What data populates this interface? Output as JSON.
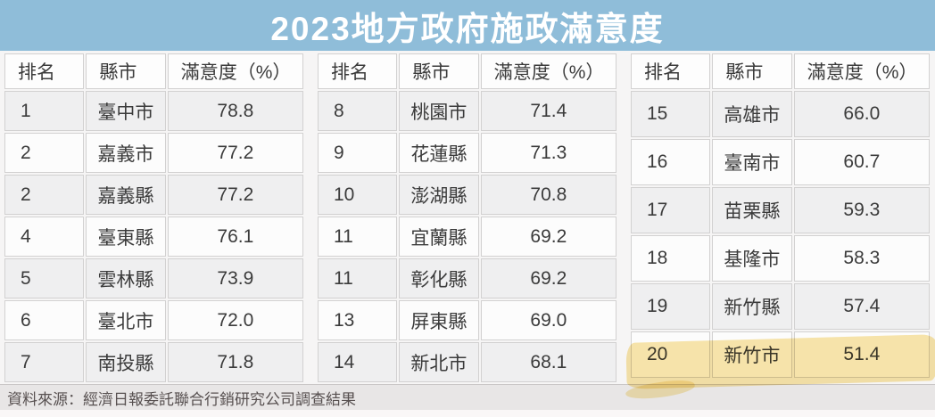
{
  "title": "2023地方政府施政滿意度",
  "source_note": "資料來源：經濟日報委託聯合行銷研究公司調查結果",
  "columns": {
    "rank": "排名",
    "city": "縣市",
    "satisfaction": "滿意度（%）"
  },
  "tables": [
    {
      "rows": [
        {
          "rank": "1",
          "city": "臺中市",
          "score": "78.8"
        },
        {
          "rank": "2",
          "city": "嘉義市",
          "score": "77.2"
        },
        {
          "rank": "2",
          "city": "嘉義縣",
          "score": "77.2"
        },
        {
          "rank": "4",
          "city": "臺東縣",
          "score": "76.1"
        },
        {
          "rank": "5",
          "city": "雲林縣",
          "score": "73.9"
        },
        {
          "rank": "6",
          "city": "臺北市",
          "score": "72.0"
        },
        {
          "rank": "7",
          "city": "南投縣",
          "score": "71.8"
        }
      ]
    },
    {
      "rows": [
        {
          "rank": "8",
          "city": "桃園市",
          "score": "71.4"
        },
        {
          "rank": "9",
          "city": "花蓮縣",
          "score": "71.3"
        },
        {
          "rank": "10",
          "city": "澎湖縣",
          "score": "70.8"
        },
        {
          "rank": "11",
          "city": "宜蘭縣",
          "score": "69.2"
        },
        {
          "rank": "11",
          "city": "彰化縣",
          "score": "69.2"
        },
        {
          "rank": "13",
          "city": "屏東縣",
          "score": "69.0"
        },
        {
          "rank": "14",
          "city": "新北市",
          "score": "68.1"
        }
      ]
    },
    {
      "rows": [
        {
          "rank": "15",
          "city": "高雄市",
          "score": "66.0"
        },
        {
          "rank": "16",
          "city": "臺南市",
          "score": "60.7"
        },
        {
          "rank": "17",
          "city": "苗栗縣",
          "score": "59.3"
        },
        {
          "rank": "18",
          "city": "基隆市",
          "score": "58.3"
        },
        {
          "rank": "19",
          "city": "新竹縣",
          "score": "57.4"
        },
        {
          "rank": "20",
          "city": "新竹市",
          "score": "51.4"
        }
      ]
    }
  ],
  "highlight": {
    "rank": "20",
    "city": "新竹市",
    "score": "51.4",
    "color": "#f3cf5f"
  },
  "colors": {
    "banner_blue": "#8fbdd9",
    "highlight_yellow": "#f3cf5f",
    "row_stripe": "#efeff0"
  },
  "chart_data": {
    "type": "table",
    "title": "2023地方政府施政滿意度",
    "columns": [
      "排名",
      "縣市",
      "滿意度（%）"
    ],
    "rows": [
      [
        1,
        "臺中市",
        78.8
      ],
      [
        2,
        "嘉義市",
        77.2
      ],
      [
        2,
        "嘉義縣",
        77.2
      ],
      [
        4,
        "臺東縣",
        76.1
      ],
      [
        5,
        "雲林縣",
        73.9
      ],
      [
        6,
        "臺北市",
        72.0
      ],
      [
        7,
        "南投縣",
        71.8
      ],
      [
        8,
        "桃園市",
        71.4
      ],
      [
        9,
        "花蓮縣",
        71.3
      ],
      [
        10,
        "澎湖縣",
        70.8
      ],
      [
        11,
        "宜蘭縣",
        69.2
      ],
      [
        11,
        "彰化縣",
        69.2
      ],
      [
        13,
        "屏東縣",
        69.0
      ],
      [
        14,
        "新北市",
        68.1
      ],
      [
        15,
        "高雄市",
        66.0
      ],
      [
        16,
        "臺南市",
        60.7
      ],
      [
        17,
        "苗栗縣",
        59.3
      ],
      [
        18,
        "基隆市",
        58.3
      ],
      [
        19,
        "新竹縣",
        57.4
      ],
      [
        20,
        "新竹市",
        51.4
      ]
    ],
    "highlighted_row": [
      20,
      "新竹市",
      51.4
    ],
    "source": "資料來源：經濟日報委託聯合行銷研究公司調查結果",
    "layout": "three side-by-side rank tables, yellow highlighter stroke on rank 20"
  }
}
